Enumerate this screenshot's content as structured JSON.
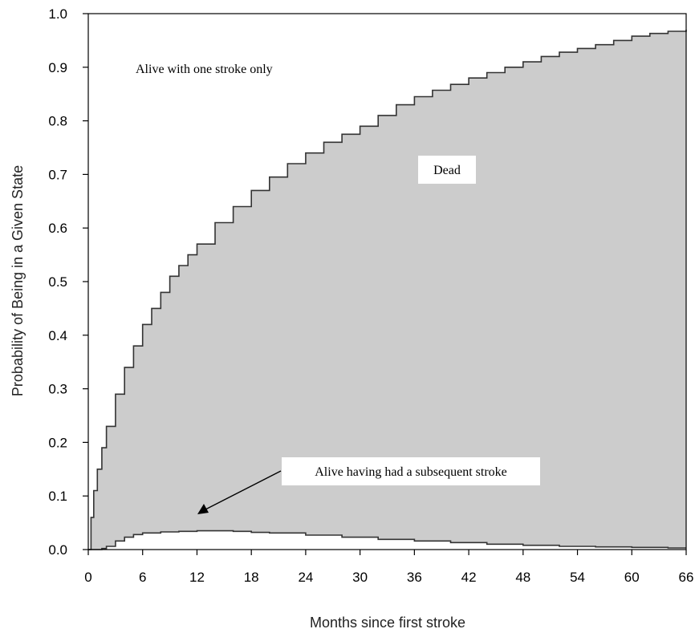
{
  "chart_data": {
    "type": "area",
    "xlabel": "Months since first stroke",
    "ylabel": "Probability of Being in a Given State",
    "xlim": [
      0,
      66
    ],
    "ylim": [
      0,
      1.0
    ],
    "x_ticks": [
      0,
      6,
      12,
      18,
      24,
      30,
      36,
      42,
      48,
      54,
      60,
      66
    ],
    "y_ticks": [
      "0.0",
      "0.1",
      "0.2",
      "0.3",
      "0.4",
      "0.5",
      "0.6",
      "0.7",
      "0.8",
      "0.9",
      "1.0"
    ],
    "grid": false,
    "fill_color": "#cccccc",
    "line_color": "#333333",
    "series": [
      {
        "name": "Dead",
        "x": [
          0,
          0.3,
          0.6,
          1,
          1.5,
          2,
          3,
          4,
          5,
          6,
          7,
          8,
          9,
          10,
          11,
          12,
          14,
          16,
          18,
          20,
          22,
          24,
          26,
          28,
          30,
          32,
          34,
          36,
          38,
          40,
          42,
          44,
          46,
          48,
          50,
          52,
          54,
          56,
          58,
          60,
          62,
          64,
          66
        ],
        "y": [
          0,
          0.06,
          0.11,
          0.15,
          0.19,
          0.23,
          0.29,
          0.34,
          0.38,
          0.42,
          0.45,
          0.48,
          0.51,
          0.53,
          0.55,
          0.57,
          0.61,
          0.64,
          0.67,
          0.695,
          0.72,
          0.74,
          0.76,
          0.775,
          0.79,
          0.81,
          0.83,
          0.845,
          0.857,
          0.868,
          0.88,
          0.89,
          0.9,
          0.91,
          0.92,
          0.928,
          0.935,
          0.942,
          0.95,
          0.958,
          0.963,
          0.967,
          0.97
        ]
      },
      {
        "name": "Alive having had a subsequent stroke",
        "x": [
          0,
          1,
          1.5,
          2,
          3,
          4,
          5,
          6,
          8,
          10,
          12,
          14,
          16,
          18,
          20,
          24,
          28,
          32,
          36,
          40,
          44,
          48,
          52,
          56,
          60,
          64,
          66
        ],
        "y": [
          0,
          0,
          0.002,
          0.006,
          0.016,
          0.023,
          0.028,
          0.031,
          0.033,
          0.034,
          0.035,
          0.035,
          0.034,
          0.032,
          0.031,
          0.027,
          0.023,
          0.019,
          0.016,
          0.013,
          0.01,
          0.008,
          0.006,
          0.005,
          0.004,
          0.003,
          0.003
        ]
      }
    ],
    "annotations": {
      "alive_one_stroke": "Alive with one stroke only",
      "dead": "Dead",
      "subsequent_stroke": "Alive having had a subsequent stroke"
    }
  }
}
